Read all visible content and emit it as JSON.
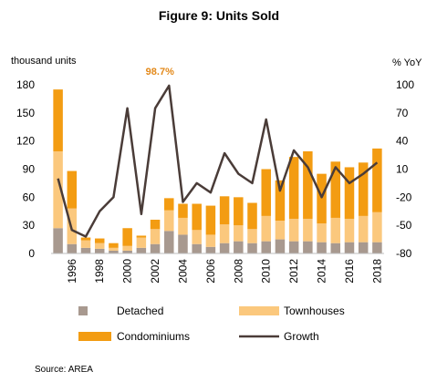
{
  "chart_data": {
    "type": "bar+line",
    "title": "Figure 9: Units Sold",
    "left_axis_unit": "thousand units",
    "right_axis_unit": "% YoY",
    "left_ticks": [
      0,
      30,
      60,
      90,
      120,
      150,
      180
    ],
    "right_ticks": [
      -80,
      -50,
      -20,
      10,
      40,
      70,
      100
    ],
    "ylim_left": [
      0,
      180
    ],
    "ylim_right": [
      -80,
      100
    ],
    "x_tick_labels": [
      "1996",
      "1998",
      "2000",
      "2002",
      "2004",
      "2006",
      "2008",
      "2010",
      "2012",
      "2014",
      "2016",
      "2018"
    ],
    "categories": [
      "1995",
      "1996",
      "1997",
      "1998",
      "1999",
      "2000",
      "2001",
      "2002",
      "2003",
      "2004",
      "2005",
      "2006",
      "2007",
      "2008",
      "2009",
      "2010",
      "2011",
      "2012",
      "2013",
      "2014",
      "2015",
      "2016",
      "2017",
      "2018"
    ],
    "stacks": [
      {
        "name": "Detached",
        "color": "#a8998f",
        "values": [
          27,
          10,
          6,
          5,
          3,
          3,
          6,
          10,
          24,
          20,
          10,
          7,
          11,
          13,
          11,
          13,
          15,
          13,
          13,
          12,
          11,
          12,
          12,
          12
        ]
      },
      {
        "name": "Townhouses",
        "color": "#fbc87d",
        "values": [
          82,
          38,
          8,
          6,
          3,
          5,
          11,
          16,
          22,
          18,
          15,
          13,
          20,
          17,
          15,
          27,
          20,
          24,
          24,
          20,
          27,
          25,
          28,
          32
        ]
      },
      {
        "name": "Condominiums",
        "color": "#f39c12",
        "values": [
          66,
          40,
          3,
          5,
          5,
          19,
          2,
          10,
          13,
          15,
          28,
          31,
          30,
          30,
          28,
          50,
          43,
          66,
          72,
          53,
          60,
          55,
          57,
          68
        ]
      }
    ],
    "growth": {
      "name": "Growth",
      "color": "#4a3c38",
      "values": [
        0,
        -55,
        -62,
        -35,
        -20,
        75,
        -38,
        75,
        99,
        -25,
        -5,
        -15,
        27,
        5,
        -5,
        63,
        -13,
        30,
        12,
        -20,
        12,
        -5,
        5,
        17
      ]
    },
    "annotation": "98.7%",
    "legend": [
      "Detached",
      "Townhouses",
      "Condominiums",
      "Growth"
    ],
    "source": "Source: AREA"
  }
}
